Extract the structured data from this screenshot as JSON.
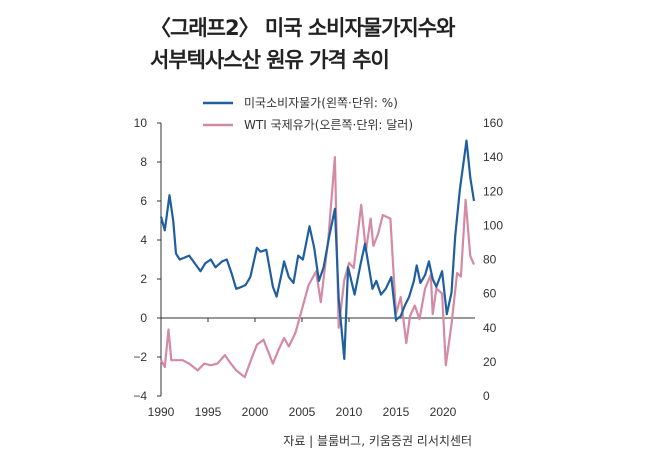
{
  "title_line1": "〈그래프2〉 미국 소비자물가지수와",
  "title_line2": "서부텍사스산 원유 가격 추이",
  "source": "자료 | 블룸버그, 키움증권 리서치센터",
  "chart_data": {
    "type": "line",
    "x_range": [
      1990,
      2023.3
    ],
    "x_ticks": [
      "1990",
      "1995",
      "2000",
      "2005",
      "2010",
      "2015",
      "2020"
    ],
    "y_left": {
      "range": [
        -4,
        10
      ],
      "ticks": [
        "10",
        "8",
        "6",
        "4",
        "2",
        "0",
        "-2",
        "-4"
      ]
    },
    "y_right": {
      "range": [
        0,
        160
      ],
      "ticks": [
        "160",
        "140",
        "120",
        "100",
        "80",
        "60",
        "40",
        "20",
        "0"
      ]
    },
    "legend_position": "top",
    "colors": {
      "cpi": "#1f5fa0",
      "wti": "#d48aa2"
    },
    "series": [
      {
        "name": "미국소비자물가(왼쪽·단위: %)",
        "axis": "left",
        "points": [
          [
            1990,
            5.2
          ],
          [
            1990.4,
            4.5
          ],
          [
            1990.9,
            6.3
          ],
          [
            1991.3,
            5
          ],
          [
            1991.6,
            3.3
          ],
          [
            1992,
            3
          ],
          [
            1992.5,
            3.1
          ],
          [
            1993,
            3.2
          ],
          [
            1993.6,
            2.8
          ],
          [
            1994.2,
            2.4
          ],
          [
            1994.7,
            2.8
          ],
          [
            1995.3,
            3
          ],
          [
            1995.8,
            2.6
          ],
          [
            1996.5,
            2.9
          ],
          [
            1997,
            3
          ],
          [
            1997.5,
            2.3
          ],
          [
            1998,
            1.5
          ],
          [
            1998.6,
            1.6
          ],
          [
            1999,
            1.7
          ],
          [
            1999.5,
            2.1
          ],
          [
            2000.2,
            3.6
          ],
          [
            2000.6,
            3.4
          ],
          [
            2001.2,
            3.5
          ],
          [
            2001.9,
            1.6
          ],
          [
            2002.3,
            1.1
          ],
          [
            2002.8,
            2.2
          ],
          [
            2003.1,
            2.9
          ],
          [
            2003.6,
            2.1
          ],
          [
            2004.1,
            1.8
          ],
          [
            2004.6,
            3.2
          ],
          [
            2005.1,
            3
          ],
          [
            2005.8,
            4.7
          ],
          [
            2006.3,
            3.6
          ],
          [
            2006.8,
            1.9
          ],
          [
            2007.3,
            2.6
          ],
          [
            2007.9,
            4.2
          ],
          [
            2008.5,
            5.6
          ],
          [
            2008.9,
            1
          ],
          [
            2009.5,
            -2.1
          ],
          [
            2009.9,
            2.6
          ],
          [
            2010.6,
            1.2
          ],
          [
            2011.2,
            2.7
          ],
          [
            2011.7,
            3.8
          ],
          [
            2012.5,
            1.5
          ],
          [
            2012.9,
            1.9
          ],
          [
            2013.4,
            1.2
          ],
          [
            2013.9,
            1.5
          ],
          [
            2014.5,
            2.1
          ],
          [
            2015,
            -0.1
          ],
          [
            2015.5,
            0.1
          ],
          [
            2015.9,
            0.6
          ],
          [
            2016.4,
            1.1
          ],
          [
            2016.9,
            1.9
          ],
          [
            2017.2,
            2.7
          ],
          [
            2017.6,
            1.8
          ],
          [
            2018.1,
            2.2
          ],
          [
            2018.5,
            2.9
          ],
          [
            2018.9,
            2
          ],
          [
            2019.3,
            1.6
          ],
          [
            2019.9,
            2.4
          ],
          [
            2020.4,
            0.2
          ],
          [
            2020.9,
            1.3
          ],
          [
            2021.3,
            4.2
          ],
          [
            2021.8,
            6.6
          ],
          [
            2022.5,
            9.1
          ],
          [
            2022.9,
            7.2
          ],
          [
            2023.3,
            6
          ]
        ]
      },
      {
        "name": "WTI 국제유가(오른쪽·단위: 달러)",
        "axis": "right",
        "points": [
          [
            1990,
            21
          ],
          [
            1990.4,
            17
          ],
          [
            1990.8,
            39
          ],
          [
            1991.1,
            21
          ],
          [
            1991.6,
            21
          ],
          [
            1992.3,
            21
          ],
          [
            1993,
            19
          ],
          [
            1993.9,
            15
          ],
          [
            1994.6,
            19
          ],
          [
            1995.3,
            18
          ],
          [
            1996,
            19
          ],
          [
            1996.8,
            24
          ],
          [
            1997.3,
            20
          ],
          [
            1998,
            15
          ],
          [
            1998.9,
            11
          ],
          [
            1999.5,
            20
          ],
          [
            2000.2,
            30
          ],
          [
            2000.9,
            33
          ],
          [
            2001.9,
            19
          ],
          [
            2002.5,
            27
          ],
          [
            2003.1,
            34
          ],
          [
            2003.6,
            29
          ],
          [
            2004.3,
            37
          ],
          [
            2004.9,
            49
          ],
          [
            2005.7,
            65
          ],
          [
            2006.5,
            73
          ],
          [
            2007,
            55
          ],
          [
            2007.8,
            92
          ],
          [
            2008.5,
            140
          ],
          [
            2008.9,
            40
          ],
          [
            2009.5,
            68
          ],
          [
            2010,
            78
          ],
          [
            2010.5,
            75
          ],
          [
            2011.3,
            112
          ],
          [
            2011.8,
            85
          ],
          [
            2012.3,
            104
          ],
          [
            2012.6,
            88
          ],
          [
            2013.1,
            95
          ],
          [
            2013.6,
            106
          ],
          [
            2014.4,
            104
          ],
          [
            2015,
            48
          ],
          [
            2015.5,
            58
          ],
          [
            2016.1,
            31
          ],
          [
            2016.5,
            47
          ],
          [
            2017,
            53
          ],
          [
            2017.5,
            45
          ],
          [
            2018.1,
            63
          ],
          [
            2018.7,
            71
          ],
          [
            2018.9,
            48
          ],
          [
            2019.3,
            63
          ],
          [
            2019.9,
            60
          ],
          [
            2020.3,
            18
          ],
          [
            2020.9,
            42
          ],
          [
            2021.5,
            72
          ],
          [
            2021.9,
            70
          ],
          [
            2022.4,
            115
          ],
          [
            2022.9,
            82
          ],
          [
            2023.3,
            77
          ]
        ]
      }
    ]
  }
}
